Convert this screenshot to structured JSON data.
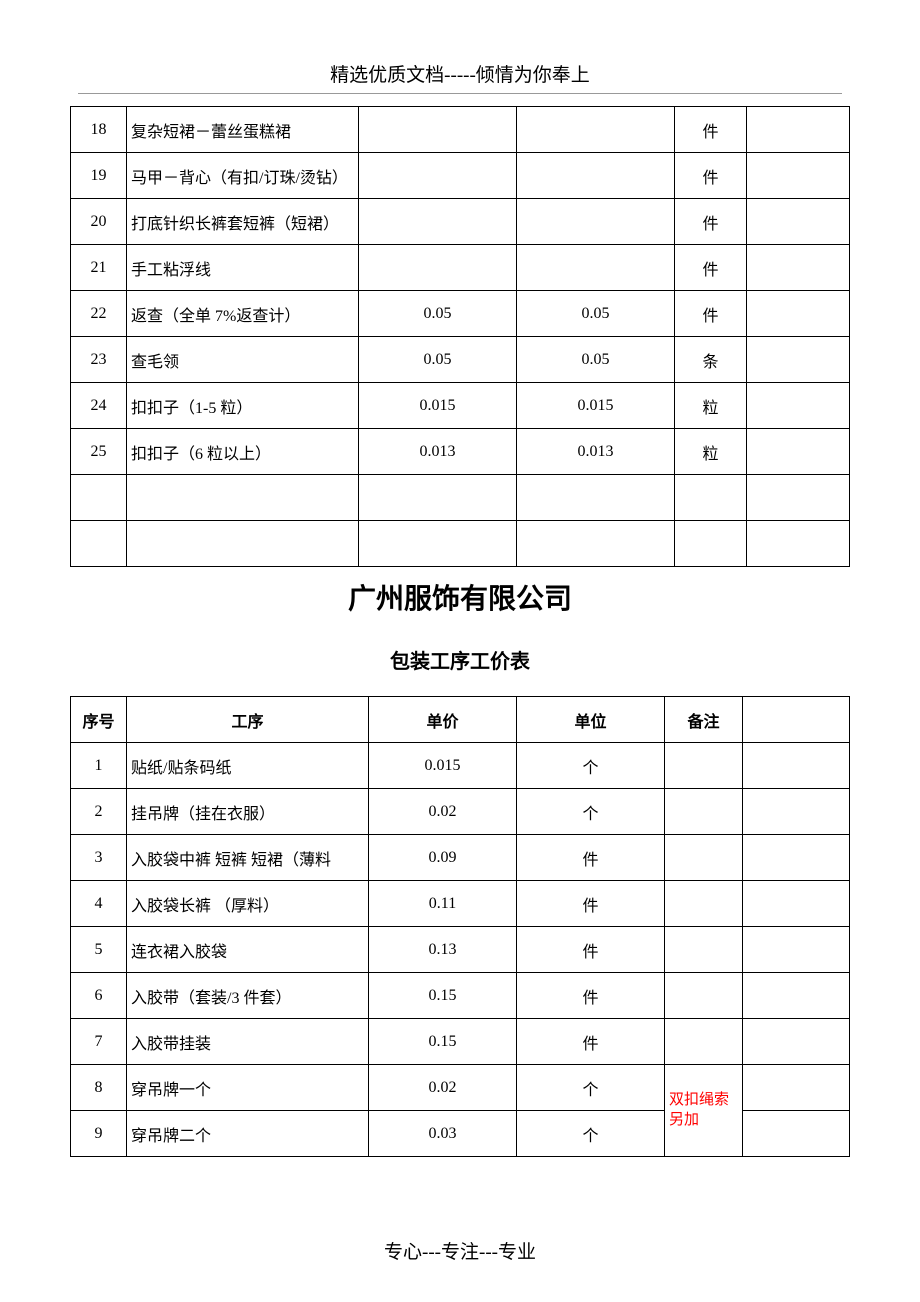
{
  "header": "精选优质文档-----倾情为你奉上",
  "footer": "专心---专注---专业",
  "company": "广州服饰有限公司",
  "subTitle": "包装工序工价表",
  "table1": {
    "rows": [
      {
        "num": "18",
        "name": "复杂短裙－蕾丝蛋糕裙",
        "p1": "",
        "p2": "",
        "unit": "件"
      },
      {
        "num": "19",
        "name": "马甲－背心（有扣/订珠/烫钻）",
        "p1": "",
        "p2": "",
        "unit": "件"
      },
      {
        "num": "20",
        "name": "打底针织长裤套短裤（短裙）",
        "p1": "",
        "p2": "",
        "unit": "件"
      },
      {
        "num": "21",
        "name": "手工粘浮线",
        "p1": "",
        "p2": "",
        "unit": "件"
      },
      {
        "num": "22",
        "name": "返查（全单 7%返查计）",
        "p1": "0.05",
        "p2": "0.05",
        "unit": "件"
      },
      {
        "num": "23",
        "name": "查毛领",
        "p1": "0.05",
        "p2": "0.05",
        "unit": "条"
      },
      {
        "num": "24",
        "name": "扣扣子（1-5 粒）",
        "p1": "0.015",
        "p2": "0.015",
        "unit": "粒"
      },
      {
        "num": "25",
        "name": "扣扣子（6 粒以上）",
        "p1": "0.013",
        "p2": "0.013",
        "unit": "粒"
      },
      {
        "num": "",
        "name": "",
        "p1": "",
        "p2": "",
        "unit": ""
      },
      {
        "num": "",
        "name": "",
        "p1": "",
        "p2": "",
        "unit": ""
      }
    ]
  },
  "table2": {
    "headers": {
      "num": "序号",
      "name": "工序",
      "price": "单价",
      "unit": "单位",
      "note": "备注"
    },
    "redNote": "双扣绳索另加",
    "rows": [
      {
        "num": "1",
        "name": "贴纸/贴条码纸",
        "price": "0.015",
        "unit": "个"
      },
      {
        "num": "2",
        "name": "挂吊牌（挂在衣服）",
        "price": "0.02",
        "unit": "个"
      },
      {
        "num": "3",
        "name": "入胶袋中裤   短裤   短裙（薄料",
        "price": "0.09",
        "unit": "件"
      },
      {
        "num": "4",
        "name": "入胶袋长裤  （厚料）",
        "price": "0.11",
        "unit": "件"
      },
      {
        "num": "5",
        "name": "连衣裙入胶袋",
        "price": "0.13",
        "unit": "件"
      },
      {
        "num": "6",
        "name": "入胶带（套装/3 件套）",
        "price": "0.15",
        "unit": "件"
      },
      {
        "num": "7",
        "name": "入胶带挂装",
        "price": "0.15",
        "unit": "件"
      },
      {
        "num": "8",
        "name": "穿吊牌一个",
        "price": "0.02",
        "unit": "个"
      },
      {
        "num": "9",
        "name": "穿吊牌二个",
        "price": "0.03",
        "unit": "个"
      }
    ]
  }
}
